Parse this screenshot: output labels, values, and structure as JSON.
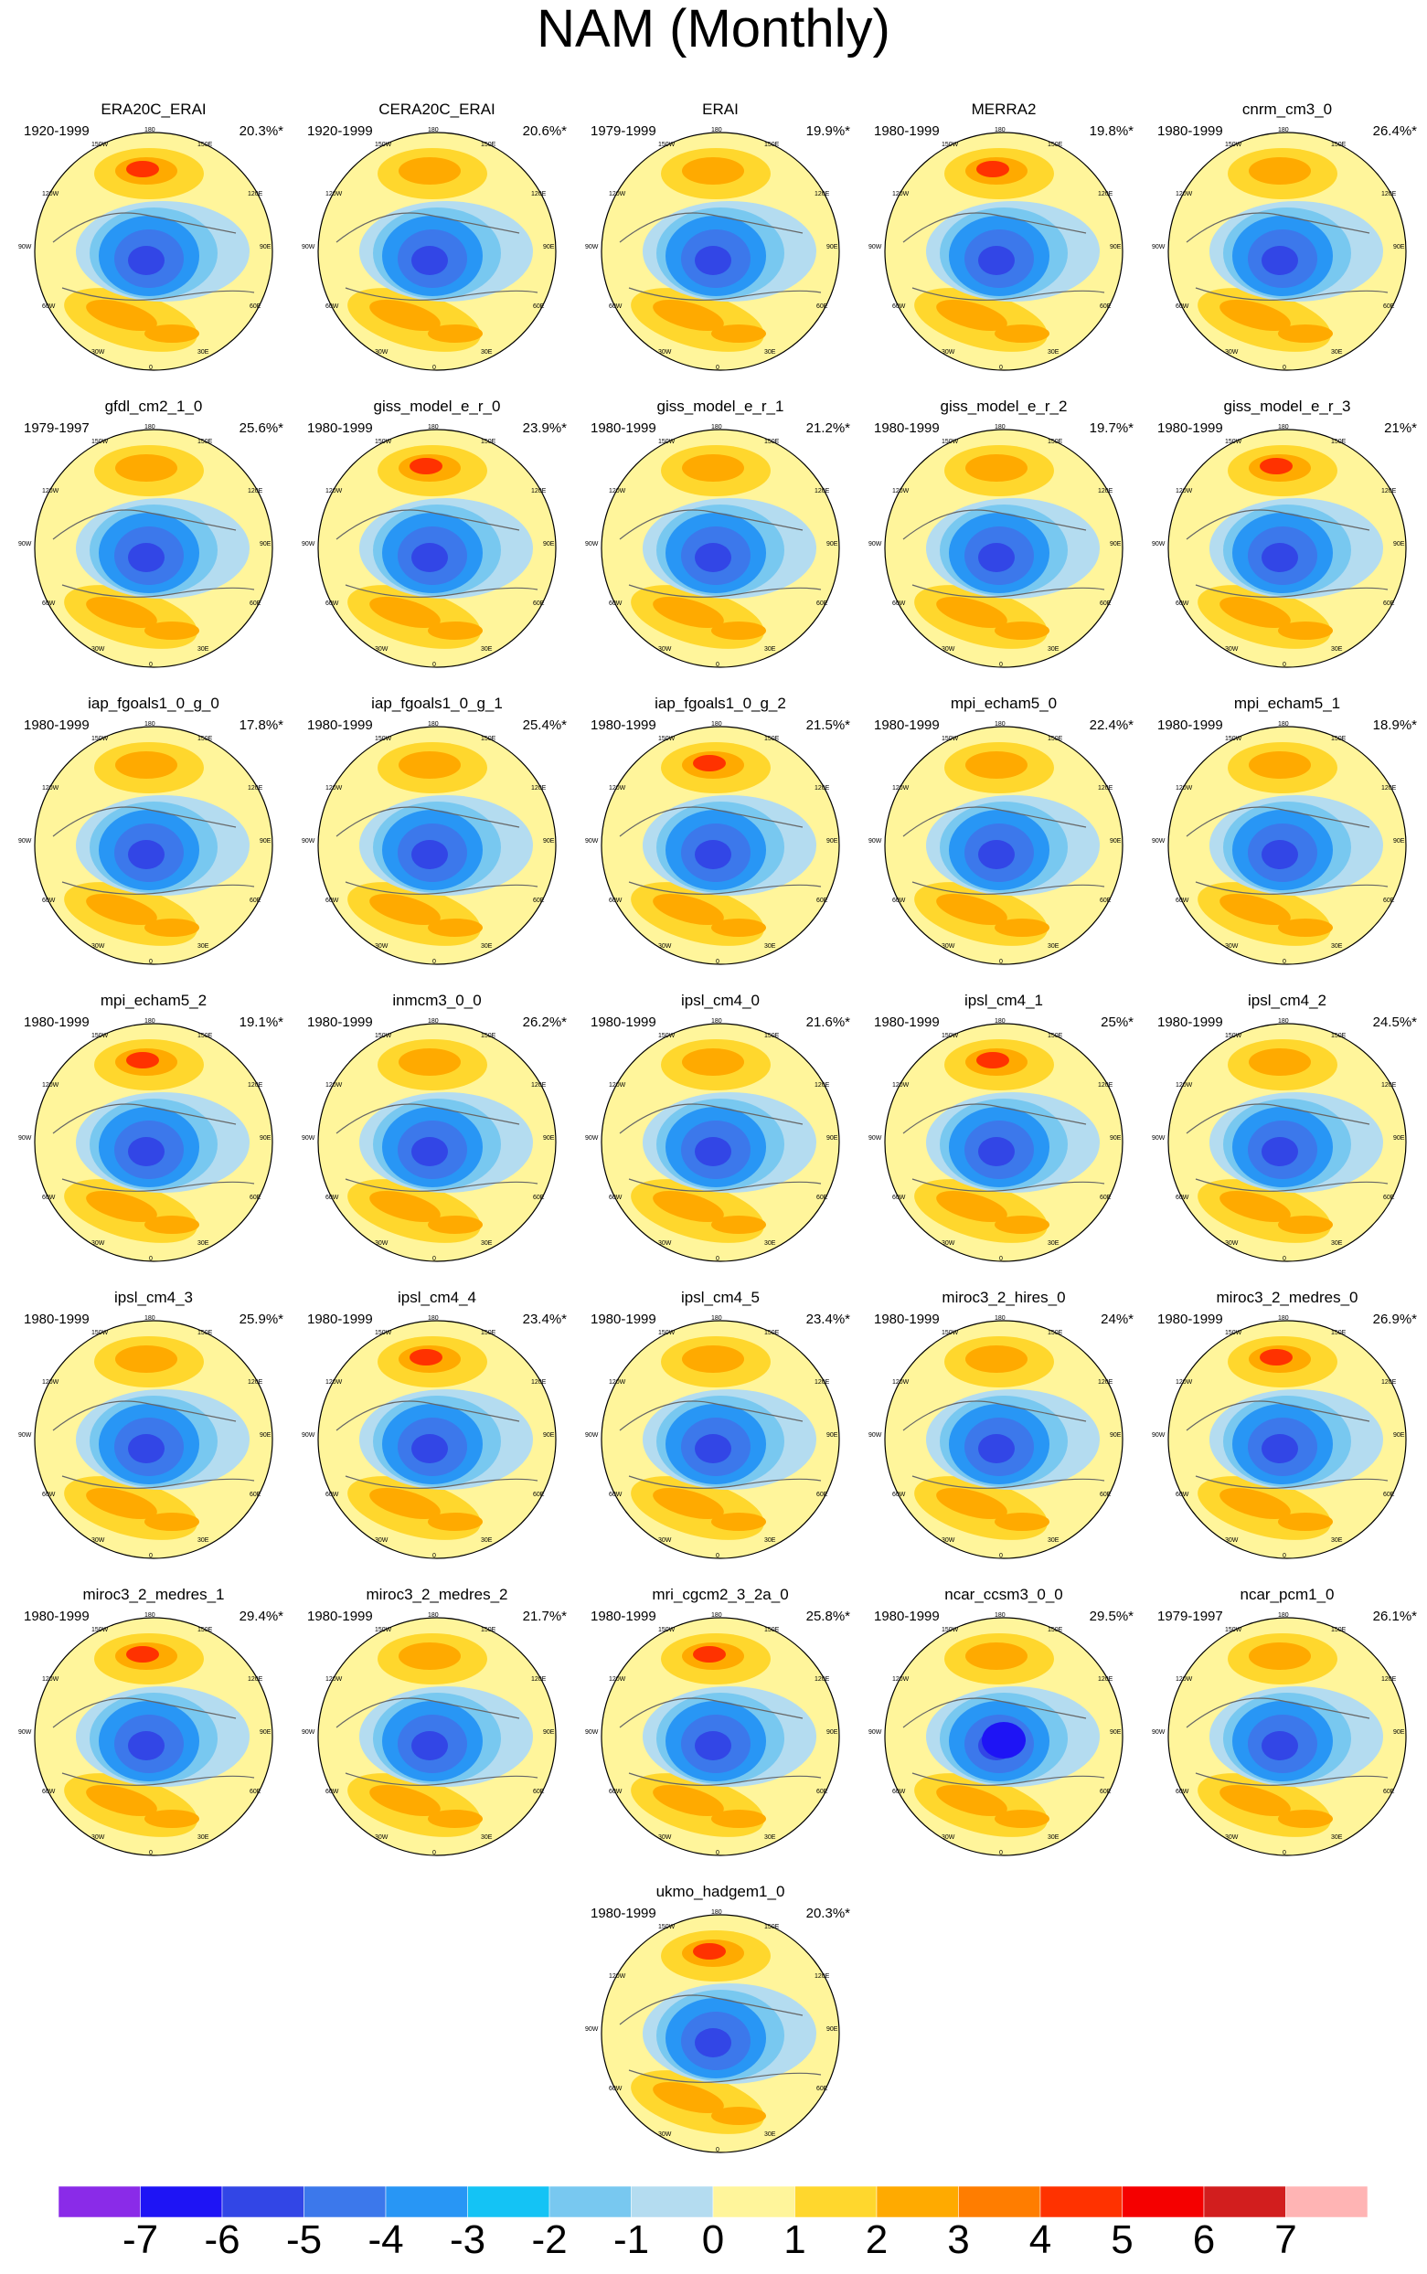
{
  "title": "NAM (Monthly)",
  "lon_labels": {
    "top": "180",
    "top_left": "150W",
    "top_right": "150E",
    "upper_left": "120W",
    "upper_right": "120E",
    "left": "90W",
    "right": "90E",
    "lower_left": "60W",
    "lower_right": "60E",
    "bottom_left": "30W",
    "bottom_right": "30E",
    "bottom": "0"
  },
  "panels": [
    {
      "name": "ERA20C_ERAI",
      "period": "1920-1999",
      "pct": "20.3%*"
    },
    {
      "name": "CERA20C_ERAI",
      "period": "1920-1999",
      "pct": "20.6%*"
    },
    {
      "name": "ERAI",
      "period": "1979-1999",
      "pct": "19.9%*"
    },
    {
      "name": "MERRA2",
      "period": "1980-1999",
      "pct": "19.8%*"
    },
    {
      "name": "cnrm_cm3_0",
      "period": "1980-1999",
      "pct": "26.4%*"
    },
    {
      "name": "gfdl_cm2_1_0",
      "period": "1979-1997",
      "pct": "25.6%*"
    },
    {
      "name": "giss_model_e_r_0",
      "period": "1980-1999",
      "pct": "23.9%*"
    },
    {
      "name": "giss_model_e_r_1",
      "period": "1980-1999",
      "pct": "21.2%*"
    },
    {
      "name": "giss_model_e_r_2",
      "period": "1980-1999",
      "pct": "19.7%*"
    },
    {
      "name": "giss_model_e_r_3",
      "period": "1980-1999",
      "pct": "21%*"
    },
    {
      "name": "iap_fgoals1_0_g_0",
      "period": "1980-1999",
      "pct": "17.8%*"
    },
    {
      "name": "iap_fgoals1_0_g_1",
      "period": "1980-1999",
      "pct": "25.4%*"
    },
    {
      "name": "iap_fgoals1_0_g_2",
      "period": "1980-1999",
      "pct": "21.5%*"
    },
    {
      "name": "mpi_echam5_0",
      "period": "1980-1999",
      "pct": "22.4%*"
    },
    {
      "name": "mpi_echam5_1",
      "period": "1980-1999",
      "pct": "18.9%*"
    },
    {
      "name": "mpi_echam5_2",
      "period": "1980-1999",
      "pct": "19.1%*"
    },
    {
      "name": "inmcm3_0_0",
      "period": "1980-1999",
      "pct": "26.2%*"
    },
    {
      "name": "ipsl_cm4_0",
      "period": "1980-1999",
      "pct": "21.6%*"
    },
    {
      "name": "ipsl_cm4_1",
      "period": "1980-1999",
      "pct": "25%*"
    },
    {
      "name": "ipsl_cm4_2",
      "period": "1980-1999",
      "pct": "24.5%*"
    },
    {
      "name": "ipsl_cm4_3",
      "period": "1980-1999",
      "pct": "25.9%*"
    },
    {
      "name": "ipsl_cm4_4",
      "period": "1980-1999",
      "pct": "23.4%*"
    },
    {
      "name": "ipsl_cm4_5",
      "period": "1980-1999",
      "pct": "23.4%*"
    },
    {
      "name": "miroc3_2_hires_0",
      "period": "1980-1999",
      "pct": "24%*"
    },
    {
      "name": "miroc3_2_medres_0",
      "period": "1980-1999",
      "pct": "26.9%*"
    },
    {
      "name": "miroc3_2_medres_1",
      "period": "1980-1999",
      "pct": "29.4%*"
    },
    {
      "name": "miroc3_2_medres_2",
      "period": "1980-1999",
      "pct": "21.7%*"
    },
    {
      "name": "mri_cgcm2_3_2a_0",
      "period": "1980-1999",
      "pct": "25.8%*"
    },
    {
      "name": "ncar_ccsm3_0_0",
      "period": "1980-1999",
      "pct": "29.5%*"
    },
    {
      "name": "ncar_pcm1_0",
      "period": "1979-1997",
      "pct": "26.1%*"
    },
    {
      "name": "ukmo_hadgem1_0",
      "period": "1980-1999",
      "pct": "20.3%*"
    }
  ],
  "colorbar": {
    "ticks": [
      "-7",
      "-6",
      "-5",
      "-4",
      "-3",
      "-2",
      "-1",
      "0",
      "1",
      "2",
      "3",
      "4",
      "5",
      "6",
      "7"
    ],
    "colors": [
      "#8a2be8",
      "#1e14f5",
      "#3246e6",
      "#3c78eb",
      "#2896f5",
      "#14c3f5",
      "#78c8f0",
      "#b4dcf0",
      "#fff59b",
      "#ffd72d",
      "#ffaa00",
      "#ff7d00",
      "#ff3200",
      "#f50000",
      "#d21e1e",
      "#ffb4b4"
    ]
  }
}
